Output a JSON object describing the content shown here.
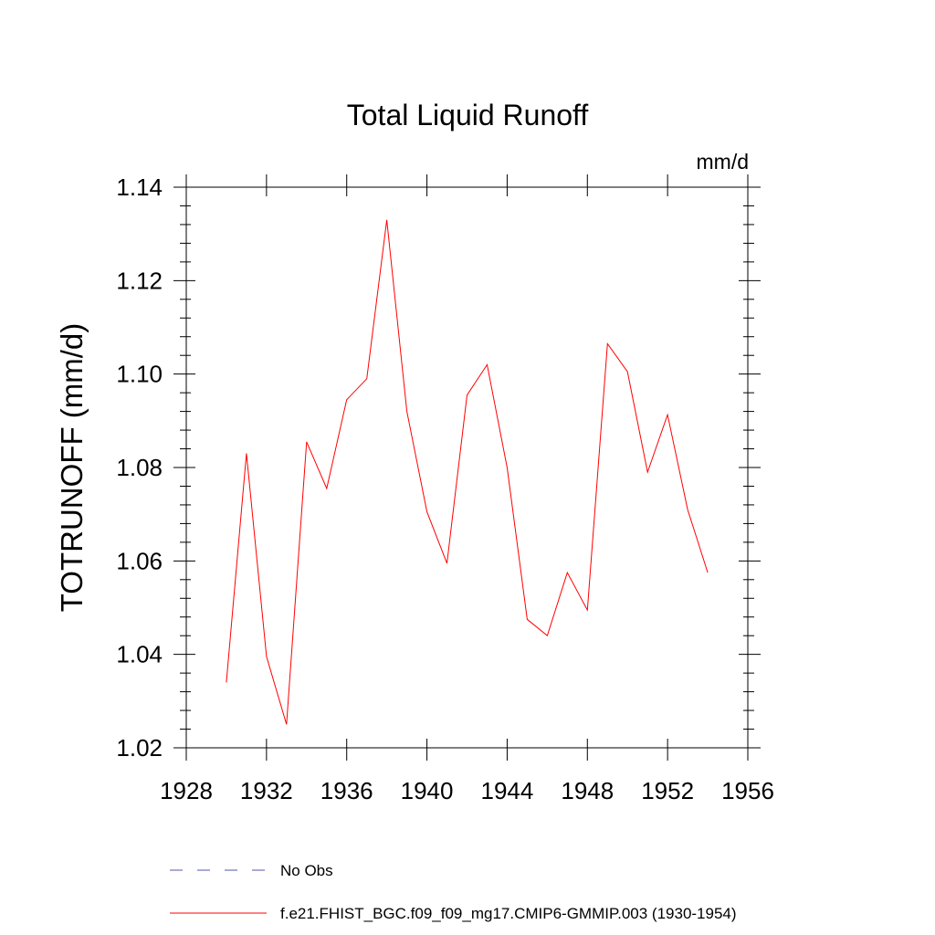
{
  "chart_data": {
    "type": "line",
    "title": "Total Liquid Runoff",
    "units": "mm/d",
    "ylabel": "TOTRUNOFF  (mm/d)",
    "xlabel": "",
    "xlim": [
      1928,
      1956
    ],
    "ylim": [
      1.02,
      1.14
    ],
    "x_ticks": [
      1928,
      1932,
      1936,
      1940,
      1944,
      1948,
      1952,
      1956
    ],
    "x_tick_labels": [
      "1928",
      "1932",
      "1936",
      "1940",
      "1944",
      "1948",
      "1952",
      "1956"
    ],
    "y_ticks": [
      1.02,
      1.04,
      1.06,
      1.08,
      1.1,
      1.12,
      1.14
    ],
    "y_tick_labels": [
      "1.02",
      "1.04",
      "1.06",
      "1.08",
      "1.10",
      "1.12",
      "1.14"
    ],
    "grid": false,
    "legend_position": "bottom",
    "series": [
      {
        "name": "No Obs",
        "color": "#5555aa",
        "dash": "dashed",
        "x": [],
        "y": []
      },
      {
        "name": "f.e21.FHIST_BGC.f09_f09_mg17.CMIP6-GMMIP.003 (1930-1954)",
        "color": "#ff0000",
        "dash": "solid",
        "x": [
          1930,
          1931,
          1932,
          1933,
          1934,
          1935,
          1936,
          1937,
          1938,
          1939,
          1940,
          1941,
          1942,
          1943,
          1944,
          1945,
          1946,
          1947,
          1948,
          1949,
          1950,
          1951,
          1952,
          1953,
          1954
        ],
        "y": [
          1.034,
          1.083,
          1.0395,
          1.025,
          1.0855,
          1.0755,
          1.0945,
          1.099,
          1.133,
          1.092,
          1.0705,
          1.0595,
          1.0955,
          1.102,
          1.08,
          1.0475,
          1.044,
          1.0575,
          1.0495,
          1.1065,
          1.1005,
          1.079,
          1.0913,
          1.071,
          1.0575
        ]
      }
    ]
  }
}
